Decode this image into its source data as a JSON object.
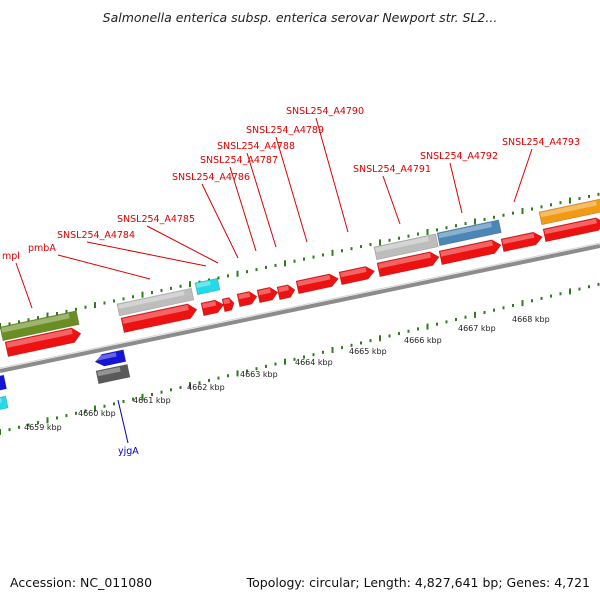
{
  "title": "Salmonella enterica subsp. enterica serovar Newport str. SL2...",
  "footer": {
    "accession": "Accession: NC_011080",
    "topology": "Topology: circular; Length: 4,827,641 bp; Genes: 4,721"
  },
  "colors": {
    "red_gene": "#ee1111",
    "gray_gene": "#bdbdbd",
    "dark_gray_gene": "#5a5a5a",
    "steel_blue_gene": "#4a86b6",
    "orange_gene": "#f39a14",
    "olive_gene": "#6b8e23",
    "cyan_gene": "#22dbe6",
    "blue_gene": "#1515d8",
    "tick_green": "#2e7d1d",
    "backbone": "#8c8c8c",
    "label_red": "#dd0000",
    "label_blue": "#0000bb"
  },
  "scale_labels": [
    "4659 kbp",
    "4660 kbp",
    "4661 kbp",
    "4662 kbp",
    "4663 kbp",
    "4664 kbp",
    "4665 kbp",
    "4666 kbp",
    "4667 kbp",
    "4668 kbp"
  ],
  "gene_labels": {
    "forward": [
      "mpl",
      "pmbA",
      "SNSL254_A4784",
      "SNSL254_A4785",
      "SNSL254_A4786",
      "SNSL254_A4787",
      "SNSL254_A4788",
      "SNSL254_A4789",
      "SNSL254_A4790",
      "SNSL254_A4791",
      "SNSL254_A4792",
      "SNSL254_A4793"
    ],
    "reverse": [
      "yjgA"
    ]
  }
}
